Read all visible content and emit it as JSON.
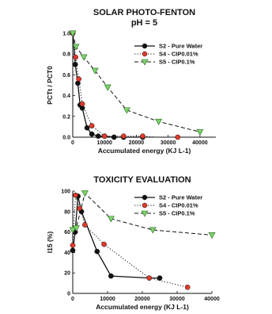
{
  "chart_data": [
    {
      "type": "line",
      "title": "SOLAR PHOTO-FENTON",
      "subtitle": "pH = 5",
      "xlabel": "Accumulated energy (KJ L-1)",
      "ylabel": "PCTt / PCT0",
      "xlim": [
        0,
        45000
      ],
      "ylim": [
        0,
        1.0
      ],
      "xticks": [
        0,
        10000,
        20000,
        30000,
        40000
      ],
      "yticks": [
        0.0,
        0.2,
        0.4,
        0.6,
        0.8,
        1.0
      ],
      "ytick_labels": [
        "0.0",
        "0.2",
        "0.4",
        "0.6",
        "0.8",
        "1.0"
      ],
      "legend_position": "top-right",
      "series": [
        {
          "name": "S2 - Pure Water",
          "marker": "circle",
          "color": "#111111",
          "line": "solid",
          "x": [
            0,
            800,
            1600,
            2300,
            3000,
            4500,
            6000,
            8000,
            10000,
            13000,
            16000,
            22000
          ],
          "y": [
            1.0,
            0.7,
            0.52,
            0.31,
            0.28,
            0.09,
            0.03,
            0.01,
            0.01,
            0.0,
            0.0,
            0.0
          ]
        },
        {
          "name": "S4 - CIP0.01%",
          "marker": "circle",
          "color": "#e03a2b",
          "line": "dotted",
          "x": [
            0,
            900,
            1900,
            3000,
            6000,
            10000,
            16000,
            22000,
            26000,
            33000
          ],
          "y": [
            1.0,
            0.77,
            0.56,
            0.32,
            0.11,
            0.01,
            0.01,
            0.01,
            0.0,
            0.0
          ],
          "mark_x": [
            0,
            900,
            1900,
            3000,
            6000,
            10000,
            16000,
            22000,
            33000
          ],
          "mark_y": [
            1.0,
            0.77,
            0.56,
            0.32,
            0.11,
            0.01,
            0.01,
            0.01,
            0.0
          ]
        },
        {
          "name": "S5 - CIP0.1%",
          "marker": "triangle-down",
          "color": "#7cd36b",
          "line": "dashed",
          "x": [
            0,
            1000,
            3500,
            7000,
            11000,
            17000,
            27000,
            40000
          ],
          "y": [
            1.0,
            0.87,
            0.77,
            0.64,
            0.48,
            0.26,
            0.15,
            0.05
          ]
        }
      ]
    },
    {
      "type": "line",
      "title": "TOXICITY EVALUATION",
      "xlabel": "Accumulated energy (KJ L-1)",
      "ylabel": "I15 (%)",
      "xlim": [
        0,
        40000
      ],
      "ylim": [
        0,
        100
      ],
      "xticks": [
        0,
        10000,
        20000,
        30000,
        40000
      ],
      "yticks": [
        0,
        20,
        40,
        60,
        80,
        100
      ],
      "legend_position": "top-right",
      "series": [
        {
          "name": "S2 - Pure Water",
          "marker": "circle",
          "color": "#111111",
          "line": "solid",
          "x": [
            0,
            700,
            1500,
            2500,
            7000,
            11000,
            22000,
            25000
          ],
          "y": [
            42,
            60,
            95,
            80,
            41,
            17,
            15,
            15
          ],
          "mark_x": [
            0,
            700,
            1500,
            2500,
            7000,
            11000,
            25000
          ],
          "mark_y": [
            42,
            60,
            95,
            80,
            41,
            17,
            15
          ]
        },
        {
          "name": "S4 - CIP0.01%",
          "marker": "circle",
          "color": "#e03a2b",
          "line": "dotted",
          "x": [
            0,
            800,
            2000,
            3500,
            9000,
            22000,
            33000
          ],
          "y": [
            47,
            96,
            83,
            67,
            48,
            15,
            6
          ]
        },
        {
          "name": "S5 - CIP0.1%",
          "marker": "triangle-down",
          "color": "#7cd36b",
          "line": "dashed",
          "x": [
            0,
            1000,
            3500,
            11000,
            23000,
            40000
          ],
          "y": [
            62,
            64,
            98,
            73,
            62,
            57
          ]
        }
      ]
    }
  ]
}
